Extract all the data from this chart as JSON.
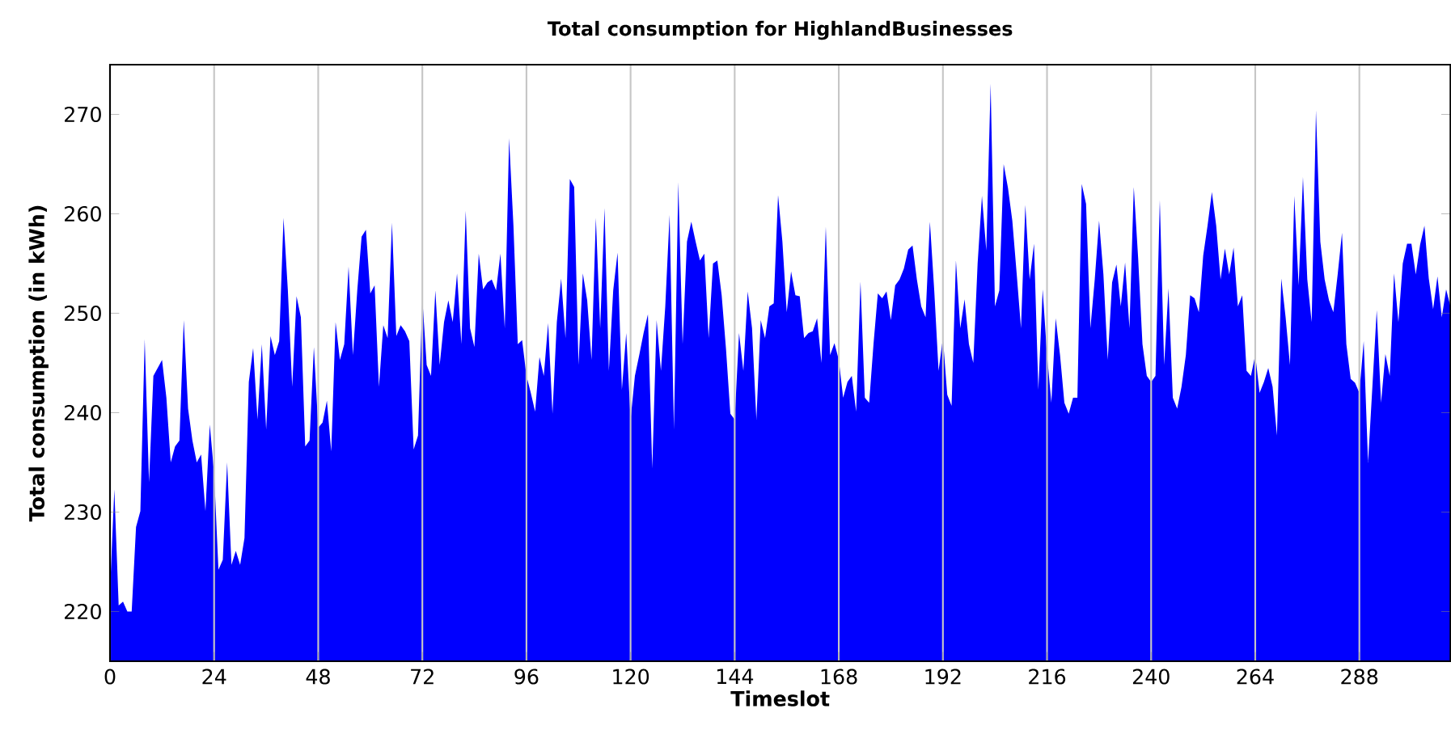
{
  "chart_data": {
    "type": "area",
    "title": "Total consumption for HighlandBusinesses",
    "xlabel": "Timeslot",
    "ylabel": "Total consumption (in kWh)",
    "color": "#0000ff",
    "grid": "x",
    "xlim": [
      0,
      309
    ],
    "ylim": [
      215,
      275
    ],
    "xticks": [
      0,
      24,
      48,
      72,
      96,
      120,
      144,
      168,
      192,
      216,
      240,
      264,
      288
    ],
    "yticks": [
      220,
      230,
      240,
      250,
      260,
      270
    ],
    "x": [
      0,
      1,
      2,
      3,
      4,
      5,
      6,
      7,
      8,
      9,
      10,
      11,
      12,
      13,
      14,
      15,
      16,
      17,
      18,
      19,
      20,
      21,
      22,
      23,
      24,
      25,
      26,
      27,
      28,
      29,
      30,
      31,
      32,
      33,
      34,
      35,
      36,
      37,
      38,
      39,
      40,
      41,
      42,
      43,
      44,
      45,
      46,
      47,
      48,
      49,
      50,
      51,
      52,
      53,
      54,
      55,
      56,
      57,
      58,
      59,
      60,
      61,
      62,
      63,
      64,
      65,
      66,
      67,
      68,
      69,
      70,
      71,
      72,
      73,
      74,
      75,
      76,
      77,
      78,
      79,
      80,
      81,
      82,
      83,
      84,
      85,
      86,
      87,
      88,
      89,
      90,
      91,
      92,
      93,
      94,
      95,
      96,
      97,
      98,
      99,
      100,
      101,
      102,
      103,
      104,
      105,
      106,
      107,
      108,
      109,
      110,
      111,
      112,
      113,
      114,
      115,
      116,
      117,
      118,
      119,
      120,
      121,
      122,
      123,
      124,
      125,
      126,
      127,
      128,
      129,
      130,
      131,
      132,
      133,
      134,
      135,
      136,
      137,
      138,
      139,
      140,
      141,
      142,
      143,
      144,
      145,
      146,
      147,
      148,
      149,
      150,
      151,
      152,
      153,
      154,
      155,
      156,
      157,
      158,
      159,
      160,
      161,
      162,
      163,
      164,
      165,
      166,
      167,
      168,
      169,
      170,
      171,
      172,
      173,
      174,
      175,
      176,
      177,
      178,
      179,
      180,
      181,
      182,
      183,
      184,
      185,
      186,
      187,
      188,
      189,
      190,
      191,
      192,
      193,
      194,
      195,
      196,
      197,
      198,
      199,
      200,
      201,
      202,
      203,
      204,
      205,
      206,
      207,
      208,
      209,
      210,
      211,
      212,
      213,
      214,
      215,
      216,
      217,
      218,
      219,
      220,
      221,
      222,
      223,
      224,
      225,
      226,
      227,
      228,
      229,
      230,
      231,
      232,
      233,
      234,
      235,
      236,
      237,
      238,
      239,
      240,
      241,
      242,
      243,
      244,
      245,
      246,
      247,
      248,
      249,
      250,
      251,
      252,
      253,
      254,
      255,
      256,
      257,
      258,
      259,
      260,
      261,
      262,
      263,
      264,
      265,
      266,
      267,
      268,
      269,
      270,
      271,
      272,
      273,
      274,
      275,
      276,
      277,
      278,
      279,
      280,
      281,
      282,
      283,
      284,
      285,
      286,
      287,
      288,
      289,
      290,
      291,
      292,
      293,
      294,
      295,
      296,
      297,
      298,
      299,
      300,
      301,
      302,
      303,
      304,
      305,
      306,
      307,
      308,
      309
    ],
    "values": [
      222,
      232.3,
      220.6,
      221,
      220,
      220,
      228.5,
      230.1,
      247.4,
      233,
      243.7,
      244.5,
      245.3,
      241.5,
      235,
      236.6,
      237.2,
      249.3,
      240.4,
      237.2,
      235,
      235.8,
      230.1,
      238.8,
      233.9,
      224.2,
      225.2,
      235,
      224.7,
      226.1,
      224.7,
      227.4,
      243.1,
      246.5,
      239.3,
      246.9,
      238.3,
      247.7,
      245.8,
      247.2,
      259.6,
      252.3,
      242.6,
      251.7,
      249.6,
      236.6,
      237.2,
      246.6,
      238.5,
      239,
      241.2,
      236.1,
      249.1,
      245.3,
      246.9,
      254.7,
      245.8,
      252.3,
      257.7,
      258.4,
      252,
      252.8,
      242.6,
      248.8,
      247.5,
      259.1,
      247.7,
      248.8,
      248.2,
      247.2,
      236.3,
      237.7,
      251.5,
      244.8,
      243.7,
      252.3,
      244.8,
      249.1,
      251.3,
      249.1,
      254,
      246.9,
      260.3,
      248.5,
      246.6,
      256,
      252.4,
      253.1,
      253.4,
      252.3,
      256,
      248.5,
      267.6,
      258.8,
      246.9,
      247.3,
      243.7,
      242,
      240.1,
      245.6,
      243.7,
      249,
      239.9,
      249.1,
      253.5,
      247.5,
      263.5,
      262.7,
      244.8,
      254,
      251.3,
      245.3,
      259.6,
      248.5,
      260.6,
      244.2,
      252.3,
      256.1,
      242.3,
      248,
      239.3,
      243.7,
      245.8,
      248,
      249.9,
      234.4,
      249.3,
      244.2,
      250.7,
      259.9,
      238.3,
      263.2,
      246.9,
      257.2,
      259.2,
      257.2,
      255.3,
      256,
      247.5,
      255,
      255.3,
      251.8,
      246.4,
      239.9,
      239.3,
      248,
      244.2,
      252.2,
      248.5,
      239.3,
      249.3,
      247.5,
      250.7,
      251,
      261.9,
      257.2,
      250.1,
      254.2,
      251.8,
      251.7,
      247.5,
      248,
      248.2,
      249.5,
      245,
      258.7,
      245.8,
      247,
      245.3,
      241.5,
      243.1,
      243.7,
      240.1,
      253.2,
      241.5,
      241,
      246.9,
      252,
      251.5,
      252.2,
      249.3,
      252.8,
      253.4,
      254.5,
      256.4,
      256.8,
      253.4,
      250.7,
      249.6,
      259.2,
      252.3,
      244.2,
      247.5,
      241.8,
      240.7,
      255.3,
      248.5,
      251.4,
      246.9,
      245,
      255,
      261.8,
      256.3,
      273.1,
      250.7,
      252.3,
      265,
      262.6,
      259.3,
      254,
      248.5,
      260.9,
      253.4,
      257,
      242.3,
      252.4,
      245.8,
      241,
      249.5,
      245.8,
      241,
      239.9,
      241.5,
      241.5,
      263,
      261,
      248.5,
      253.4,
      259.3,
      253.9,
      245.3,
      253.1,
      254.9,
      250.7,
      255.1,
      248.5,
      262.7,
      255.6,
      246.9,
      243.7,
      243.1,
      243.7,
      261.4,
      244.8,
      252.5,
      241.5,
      240.4,
      242.6,
      245.8,
      251.8,
      251.5,
      250.1,
      255.8,
      258.8,
      262.2,
      258.8,
      253.4,
      256.5,
      253.9,
      256.6,
      250.7,
      251.8,
      244.2,
      243.7,
      245.8,
      242,
      243.1,
      244.5,
      242.6,
      237.7,
      253.5,
      249.6,
      244.8,
      261.8,
      252.8,
      263.7,
      253.4,
      249.1,
      270.4,
      257.2,
      253.4,
      251.3,
      250.1,
      253.9,
      258.1,
      246.9,
      243.4,
      243,
      242,
      247.2,
      235,
      242.6,
      250.3,
      241,
      245.9,
      243.7,
      254,
      249.1,
      255,
      257,
      257,
      253.9,
      256.9,
      258.8,
      253.5,
      250.4,
      253.7,
      249.6,
      252.4,
      250.7
    ]
  }
}
